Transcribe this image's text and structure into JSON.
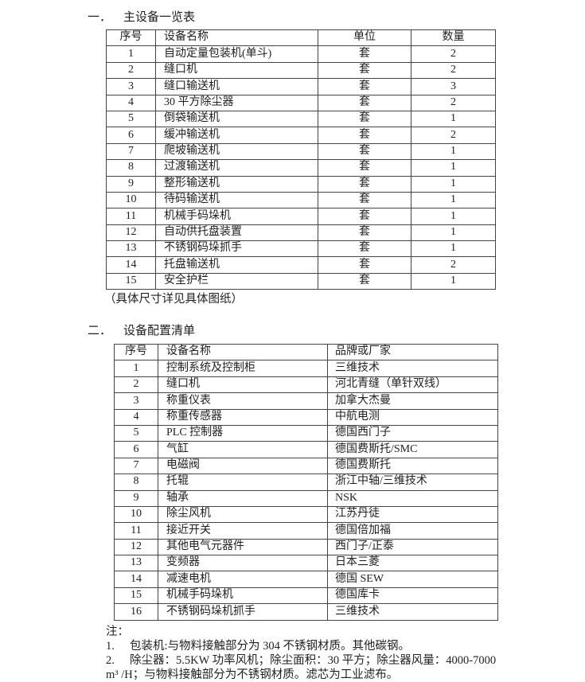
{
  "section1": {
    "number": "一．",
    "title": "主设备一览表",
    "table": {
      "headers": [
        "序号",
        "设备名称",
        "单位",
        "数量"
      ],
      "rows": [
        [
          "1",
          "自动定量包装机(单斗)",
          "套",
          "2"
        ],
        [
          "2",
          "缝口机",
          "套",
          "2"
        ],
        [
          "3",
          "缝口输送机",
          "套",
          "3"
        ],
        [
          "4",
          "30 平方除尘器",
          "套",
          "2"
        ],
        [
          "5",
          "倒袋输送机",
          "套",
          "1"
        ],
        [
          "6",
          "缓冲输送机",
          "套",
          "2"
        ],
        [
          "7",
          "爬坡输送机",
          "套",
          "1"
        ],
        [
          "8",
          "过渡输送机",
          "套",
          "1"
        ],
        [
          "9",
          "整形输送机",
          "套",
          "1"
        ],
        [
          "10",
          "待码输送机",
          "套",
          "1"
        ],
        [
          "11",
          "机械手码垛机",
          "套",
          "1"
        ],
        [
          "12",
          "自动供托盘装置",
          "套",
          "1"
        ],
        [
          "13",
          "不锈钢码垛抓手",
          "套",
          "1"
        ],
        [
          "14",
          "托盘输送机",
          "套",
          "2"
        ],
        [
          "15",
          "安全护栏",
          "套",
          "1"
        ]
      ]
    },
    "caption": "（具体尺寸详见具体图纸）"
  },
  "section2": {
    "number": "二．",
    "title": "设备配置清单",
    "table": {
      "headers": [
        "序号",
        "设备名称",
        "品牌或厂家"
      ],
      "rows": [
        [
          "1",
          "控制系统及控制柜",
          "三维技术"
        ],
        [
          "2",
          "缝口机",
          "河北青缝（单针双线）"
        ],
        [
          "3",
          "称重仪表",
          "加拿大杰曼"
        ],
        [
          "4",
          "称重传感器",
          "中航电测"
        ],
        [
          "5",
          "PLC 控制器",
          "德国西门子"
        ],
        [
          "6",
          "气缸",
          "德国费斯托/SMC"
        ],
        [
          "7",
          "电磁阀",
          "德国费斯托"
        ],
        [
          "8",
          "托辊",
          "浙江中轴/三维技术"
        ],
        [
          "9",
          "轴承",
          "NSK"
        ],
        [
          "10",
          "除尘风机",
          "江苏丹徒"
        ],
        [
          "11",
          "接近开关",
          "德国倍加福"
        ],
        [
          "12",
          "其他电气元器件",
          "西门子/正泰"
        ],
        [
          "13",
          "变频器",
          "日本三菱"
        ],
        [
          "14",
          "减速电机",
          "德国 SEW"
        ],
        [
          "15",
          "机械手码垛机",
          "德国库卡"
        ],
        [
          "16",
          "不锈钢码垛机抓手",
          "三维技术"
        ]
      ]
    }
  },
  "notes": {
    "label": "注：",
    "item1_num": "1.",
    "item1_text": "包装机:与物料接触部分为 304 不锈钢材质。其他碳钢。",
    "item2_num": "2.",
    "item2_text": "除尘器：5.5KW 功率风机；除尘面积：30 平方；除尘器风量：4000-7000",
    "item2_cont": "m³ /H；与物料接触部分为不锈钢材质。滤芯为工业滤布。"
  }
}
